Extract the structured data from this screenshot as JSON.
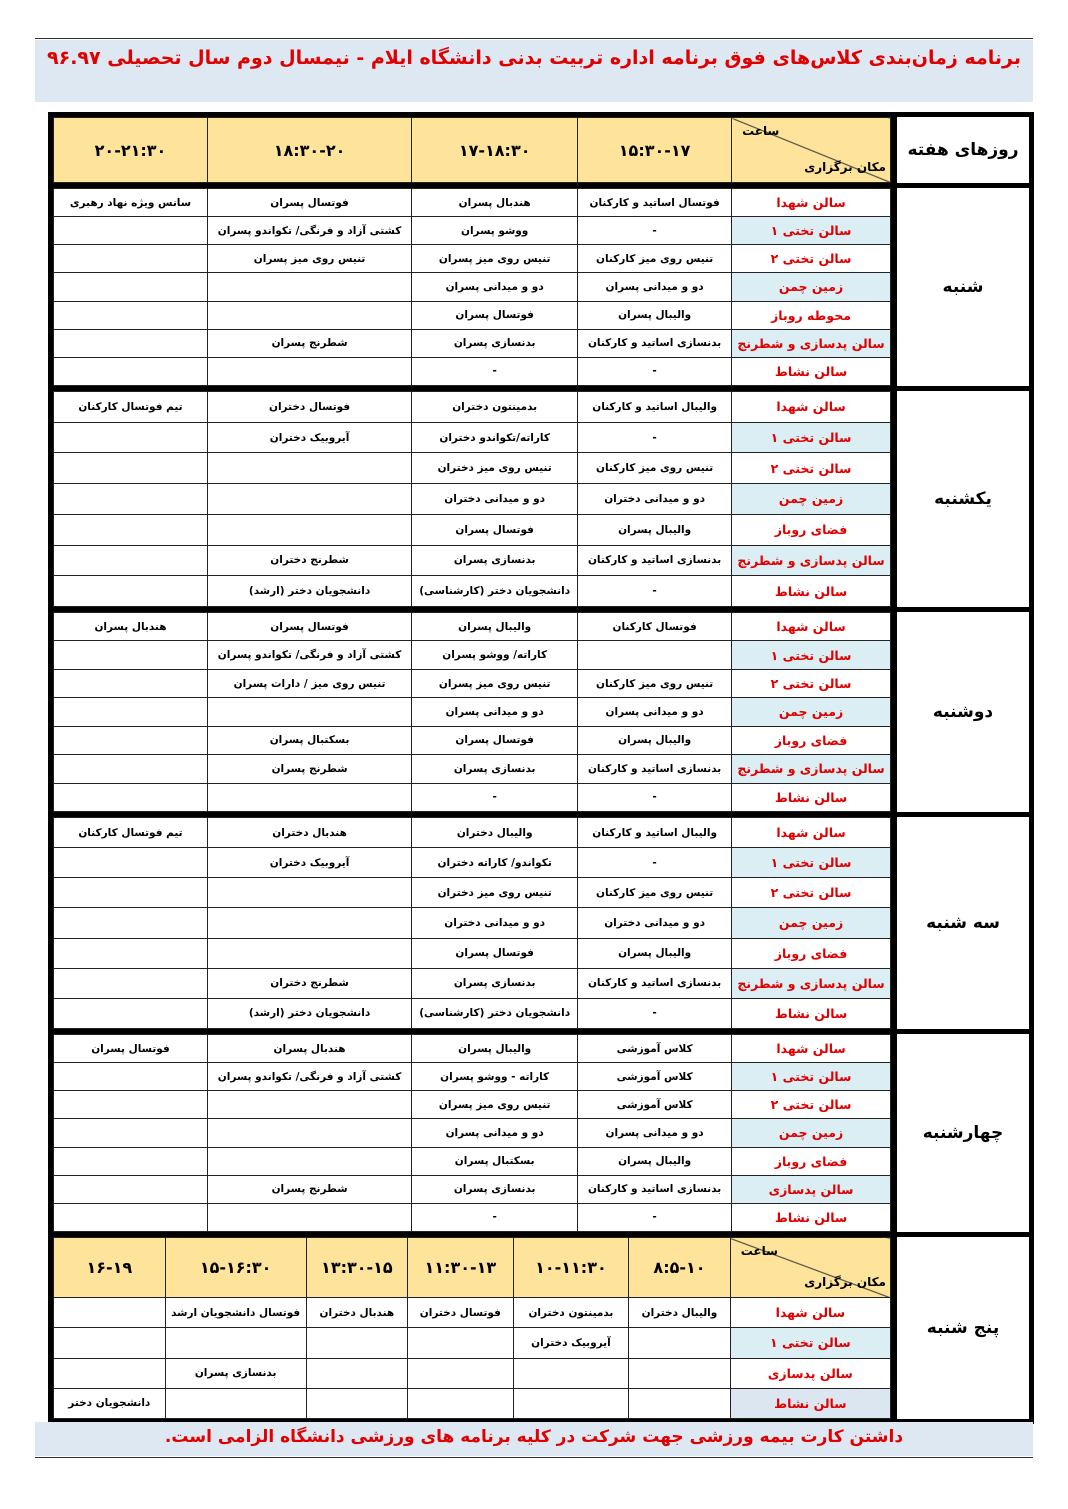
{
  "title": "برنامه زمان‌بندی کلاس‌های فوق برنامه اداره تربیت بدنی دانشگاه ایلام - نیمسال دوم سال تحصیلی ۹۶.۹۷",
  "footer": "داشتن کارت بیمه ورزشی جهت شرکت در کلیه برنامه های ورزشی دانشگاه الزامی است.",
  "colors": {
    "title": "#e00000",
    "header_bg": "#fde49a",
    "band_bg": "#dde8f3",
    "venue_shade": "#dbeef3"
  },
  "header": {
    "days_label": "روزهای هفته",
    "hour_label": "ساعت",
    "place_label": "مکان برگزاری",
    "times": [
      "۱۵:۳۰-۱۷",
      "۱۷-۱۸:۳۰",
      "۱۸:۳۰-۲۰",
      "۲۰-۲۱:۳۰"
    ]
  },
  "days": [
    {
      "name": "شنبه",
      "rows": [
        {
          "venue": "سالن شهدا",
          "shade": "",
          "cells": [
            "فوتسال  اساتید و کارکنان",
            "هندبال پسران",
            "فوتسال  پسران",
            "سانس ویژه نهاد رهبری"
          ]
        },
        {
          "venue": "سالن تختی ۱",
          "shade": "shade",
          "cells": [
            "-",
            "ووشو  پسران",
            "کشتی آزاد و فرنگی/ تکواندو پسران",
            ""
          ]
        },
        {
          "venue": "سالن تختی ۲",
          "shade": "",
          "cells": [
            "تنیس روی میز کارکنان",
            "تنیس روی میز پسران",
            "تنیس روی میز پسران",
            ""
          ]
        },
        {
          "venue": "زمین چمن",
          "shade": "shade",
          "cells": [
            "دو و میدانی پسران",
            "دو و میدانی پسران",
            "",
            ""
          ]
        },
        {
          "venue": "محوطه روباز",
          "shade": "",
          "cells": [
            "والیبال پسران",
            "فوتسال  پسران",
            "",
            ""
          ]
        },
        {
          "venue": "سالن پدسازی و شطرنج",
          "shade": "shade",
          "cells": [
            "بدنسازی  اساتید و کارکنان",
            "بدنسازی پسران",
            "شطرنج  پسران",
            ""
          ]
        },
        {
          "venue": "سالن نشاط",
          "shade": "",
          "cells": [
            "-",
            "-",
            "",
            ""
          ]
        }
      ]
    },
    {
      "name": "یکشنبه",
      "rows": [
        {
          "venue": "سالن شهدا",
          "shade": "",
          "cells": [
            "والیبال  اساتید و کارکنان",
            "بدمینتون دختران",
            "فوتسال دختران",
            "تیم فوتسال کارکنان"
          ]
        },
        {
          "venue": "سالن تختی ۱",
          "shade": "shade",
          "cells": [
            "-",
            "کاراته/تکواندو  دختران",
            "آیروبیک دختران",
            ""
          ]
        },
        {
          "venue": "سالن تختی ۲",
          "shade": "",
          "cells": [
            "تنیس روی میز کارکنان",
            "تنیس روی میز دختران",
            "",
            ""
          ]
        },
        {
          "venue": "زمین چمن",
          "shade": "shade",
          "cells": [
            "دو و میدانی دختران",
            "دو و میدانی دختران",
            "",
            ""
          ]
        },
        {
          "venue": "فضای روباز",
          "shade": "",
          "cells": [
            "والیبال پسران",
            "فوتسال  پسران",
            "",
            ""
          ]
        },
        {
          "venue": "سالن پدسازی و شطرنج",
          "shade": "shade",
          "cells": [
            "بدنسازی  اساتید و کارکنان",
            "بدنسازی پسران",
            "شطرنج  دختران",
            ""
          ]
        },
        {
          "venue": "سالن نشاط",
          "shade": "",
          "cells": [
            "-",
            "دانشجویان دختر (کارشناسی)",
            "دانشجویان دختر (ارشد)",
            ""
          ]
        }
      ]
    },
    {
      "name": "دوشنبه",
      "rows": [
        {
          "venue": "سالن شهدا",
          "shade": "",
          "cells": [
            "فوتسال کارکنان",
            "والیبال پسران",
            "فوتسال پسران",
            "هندبال پسران"
          ]
        },
        {
          "venue": "سالن تختی ۱",
          "shade": "shade",
          "cells": [
            "",
            "کاراته/ ووشو  پسران",
            "کشتی آزاد و فرنگی/ تکواندو پسران",
            ""
          ]
        },
        {
          "venue": "سالن تختی ۲",
          "shade": "",
          "cells": [
            "تنیس روی میز کارکنان",
            "تنیس روی میز پسران",
            "تنیس روی میز / دارات پسران",
            ""
          ]
        },
        {
          "venue": "زمین چمن",
          "shade": "shade",
          "cells": [
            "دو و میدانی پسران",
            "دو و میدانی پسران",
            "",
            ""
          ]
        },
        {
          "venue": "فضای روباز",
          "shade": "",
          "cells": [
            "والیبال پسران",
            "فوتسال  پسران",
            "بسکتبال پسران",
            ""
          ]
        },
        {
          "venue": "سالن پدسازی و شطرنج",
          "shade": "shade",
          "cells": [
            "بدنسازی  اساتید و کارکنان",
            "بدنسازی پسران",
            "شطرنج  پسران",
            ""
          ]
        },
        {
          "venue": "سالن نشاط",
          "shade": "",
          "cells": [
            "-",
            "-",
            "",
            ""
          ]
        }
      ]
    },
    {
      "name": "سه شنبه",
      "rows": [
        {
          "venue": "سالن شهدا",
          "shade": "",
          "cells": [
            "والیبال  اساتید و کارکنان",
            "والیبال دختران",
            "هندبال دختران",
            "تیم فوتسال کارکنان"
          ]
        },
        {
          "venue": "سالن تختی ۱",
          "shade": "shade",
          "cells": [
            "-",
            "تکواندو/ کاراته دختران",
            "آیروبیک دختران",
            ""
          ]
        },
        {
          "venue": "سالن تختی ۲",
          "shade": "",
          "cells": [
            "تنیس روی میز کارکنان",
            "تنیس روی میز دختران",
            "",
            ""
          ]
        },
        {
          "venue": "زمین چمن",
          "shade": "shade",
          "cells": [
            "دو و میدانی دختران",
            "دو و میدانی دختران",
            "",
            ""
          ]
        },
        {
          "venue": "فضای روباز",
          "shade": "",
          "cells": [
            "والیبال پسران",
            "فوتسال  پسران",
            "",
            ""
          ]
        },
        {
          "venue": "سالن پدسازی و شطرنج",
          "shade": "shade",
          "cells": [
            "بدنسازی اساتید و کارکنان",
            "بدنسازی پسران",
            "شطرنج  دختران",
            ""
          ]
        },
        {
          "venue": "سالن نشاط",
          "shade": "",
          "cells": [
            "-",
            "دانشجویان دختر (کارشناسی)",
            "دانشجویان دختر (ارشد)",
            ""
          ]
        }
      ]
    },
    {
      "name": "چهارشنبه",
      "rows": [
        {
          "venue": "سالن شهدا",
          "shade": "",
          "cells": [
            "کلاس آموزشی",
            "والیبال پسران",
            "هندبال پسران",
            "فوتسال پسران"
          ]
        },
        {
          "venue": "سالن تختی ۱",
          "shade": "shade",
          "cells": [
            "کلاس آموزشی",
            "کاراته - ووشو پسران",
            "کشتی آزاد و فرنگی/ تکواندو پسران",
            ""
          ]
        },
        {
          "venue": "سالن تختی ۲",
          "shade": "",
          "cells": [
            "کلاس آموزشی",
            "تنیس روی میز پسران",
            "",
            ""
          ]
        },
        {
          "venue": "زمین چمن",
          "shade": "shade",
          "cells": [
            "دو و میدانی پسران",
            "دو و میدانی پسران",
            "",
            ""
          ]
        },
        {
          "venue": "فضای روباز",
          "shade": "",
          "cells": [
            "والیبال  پسران",
            "بسکتبال پسران",
            "",
            ""
          ]
        },
        {
          "venue": "سالن پدسازی",
          "shade": "shade",
          "cells": [
            "بدنسازی  اساتید و کارکنان",
            "بدنسازی پسران",
            "شطرنج  پسران",
            ""
          ]
        },
        {
          "venue": "سالن نشاط",
          "shade": "",
          "cells": [
            "-",
            "-",
            "",
            ""
          ]
        }
      ]
    }
  ],
  "thursday": {
    "name": "پنج شنبه",
    "times": [
      "۸:۵-۱۰",
      "۱۰-۱۱:۳۰",
      "۱۱:۳۰-۱۳",
      "۱۳:۳۰-۱۵",
      "۱۵-۱۶:۳۰",
      "۱۶-۱۹"
    ],
    "rows": [
      {
        "venue": "سالن شهدا",
        "shade": "",
        "cells": [
          "والیبال دختران",
          "بدمینتون دختران",
          "فوتسال دختران",
          "هندبال دختران",
          "فوتسال دانشجویان ارشد",
          ""
        ]
      },
      {
        "venue": "سالن تختی ۱",
        "shade": "shade",
        "cells": [
          "",
          "آیروبیک دختران",
          "",
          "",
          "",
          ""
        ]
      },
      {
        "venue": "سالن پدسازی",
        "shade": "",
        "cells": [
          "",
          "",
          "",
          "",
          "بدنسازی پسران",
          ""
        ]
      },
      {
        "venue": "سالن نشاط",
        "shade": "shade2",
        "cells": [
          "",
          "",
          "",
          "",
          "",
          "دانشجویان دختر"
        ]
      }
    ]
  }
}
